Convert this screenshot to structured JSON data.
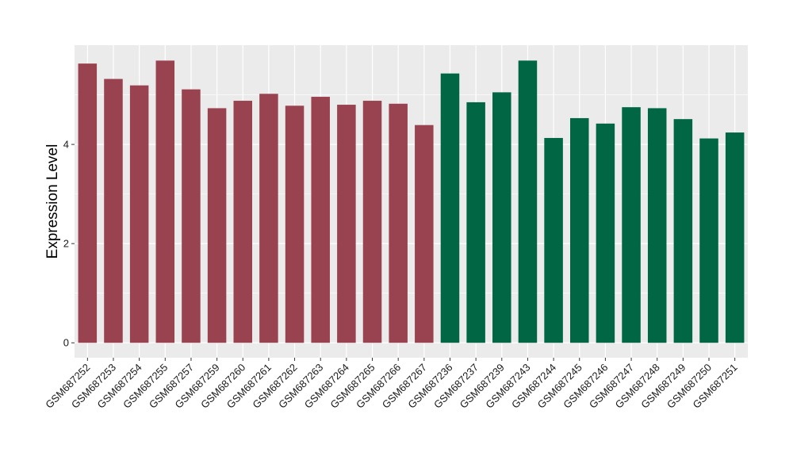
{
  "chart_data": {
    "type": "bar",
    "title": "",
    "xlabel": "",
    "ylabel": "Expression Level",
    "ylim": [
      -0.3,
      6.0
    ],
    "yticks": [
      0,
      2,
      4
    ],
    "grid": true,
    "legend": "none",
    "panel_background": "#ebebeb",
    "grid_color": "#ffffff",
    "categories": [
      "GSM687252",
      "GSM687253",
      "GSM687254",
      "GSM687255",
      "GSM687257",
      "GSM687259",
      "GSM687260",
      "GSM687261",
      "GSM687262",
      "GSM687263",
      "GSM687264",
      "GSM687265",
      "GSM687266",
      "GSM687267",
      "GSM687236",
      "GSM687237",
      "GSM687239",
      "GSM687243",
      "GSM687244",
      "GSM687245",
      "GSM687246",
      "GSM687247",
      "GSM687248",
      "GSM687249",
      "GSM687250",
      "GSM687251"
    ],
    "values": [
      5.63,
      5.32,
      5.19,
      5.69,
      5.11,
      4.73,
      4.88,
      5.02,
      4.78,
      4.96,
      4.8,
      4.88,
      4.82,
      4.39,
      5.43,
      4.85,
      5.05,
      5.69,
      4.13,
      4.53,
      4.42,
      4.75,
      4.73,
      4.51,
      4.12,
      4.24
    ],
    "colors": [
      "#9a4350",
      "#9a4350",
      "#9a4350",
      "#9a4350",
      "#9a4350",
      "#9a4350",
      "#9a4350",
      "#9a4350",
      "#9a4350",
      "#9a4350",
      "#9a4350",
      "#9a4350",
      "#9a4350",
      "#9a4350",
      "#006644",
      "#006644",
      "#006644",
      "#006644",
      "#006644",
      "#006644",
      "#006644",
      "#006644",
      "#006644",
      "#006644",
      "#006644",
      "#006644"
    ]
  }
}
